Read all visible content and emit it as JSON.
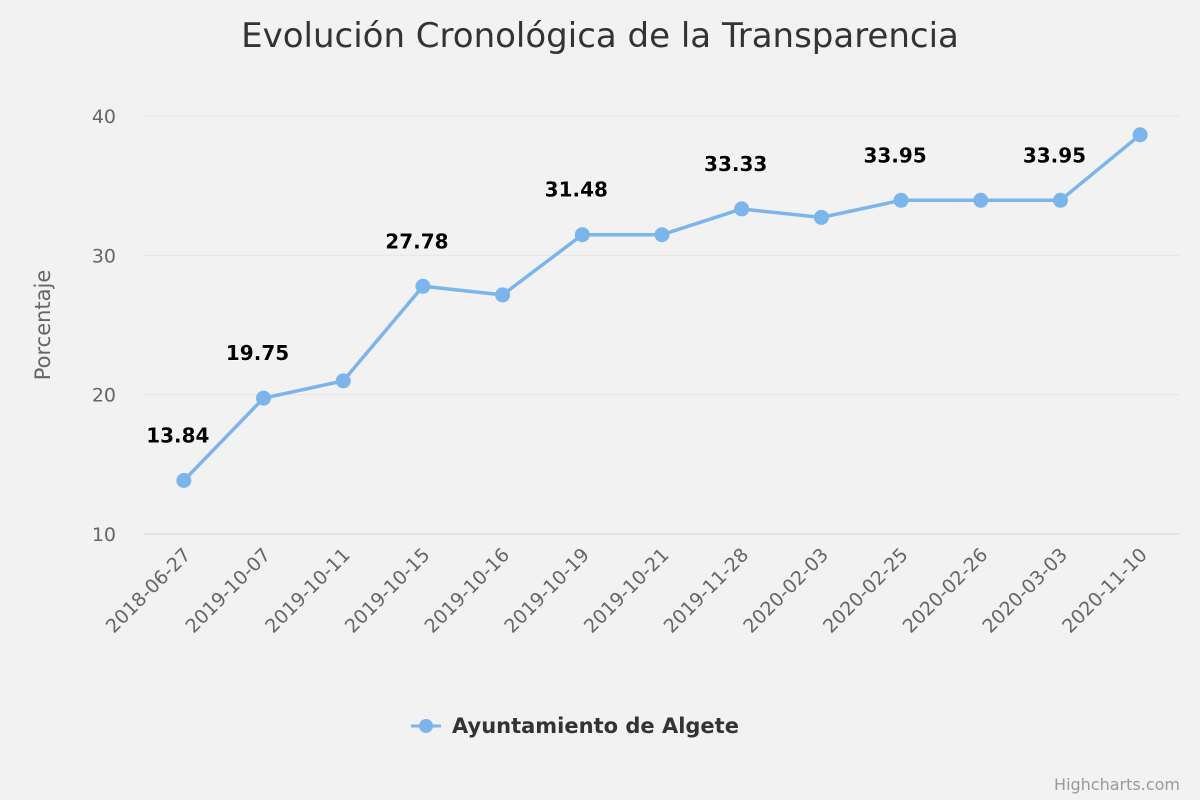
{
  "colors": {
    "background": "#f2f2f2",
    "series": "#7cb5ec",
    "grid": "#e6e6e6",
    "axis_line": "#ccd6eb"
  },
  "credits": "Highcharts.com",
  "chart_data": {
    "type": "line",
    "title": "Evolución Cronológica de la Transparencia",
    "xlabel": "",
    "ylabel": "Porcentaje",
    "ylim": [
      10,
      40
    ],
    "yticks": [
      10,
      20,
      30,
      40
    ],
    "grid": true,
    "legend_position": "bottom-center",
    "categories": [
      "2018-06-27",
      "2019-10-07",
      "2019-10-11",
      "2019-10-15",
      "2019-10-16",
      "2019-10-19",
      "2019-10-21",
      "2019-11-28",
      "2020-02-03",
      "2020-02-25",
      "2020-02-26",
      "2020-03-03",
      "2020-11-10"
    ],
    "series": [
      {
        "name": "Ayuntamiento de Algete",
        "color": "#7cb5ec",
        "values": [
          13.84,
          19.75,
          20.99,
          27.78,
          27.16,
          31.48,
          31.48,
          33.33,
          32.72,
          33.95,
          33.95,
          33.95,
          38.65
        ],
        "data_labels": [
          true,
          true,
          false,
          true,
          false,
          true,
          false,
          true,
          false,
          true,
          false,
          true,
          false
        ]
      }
    ]
  }
}
